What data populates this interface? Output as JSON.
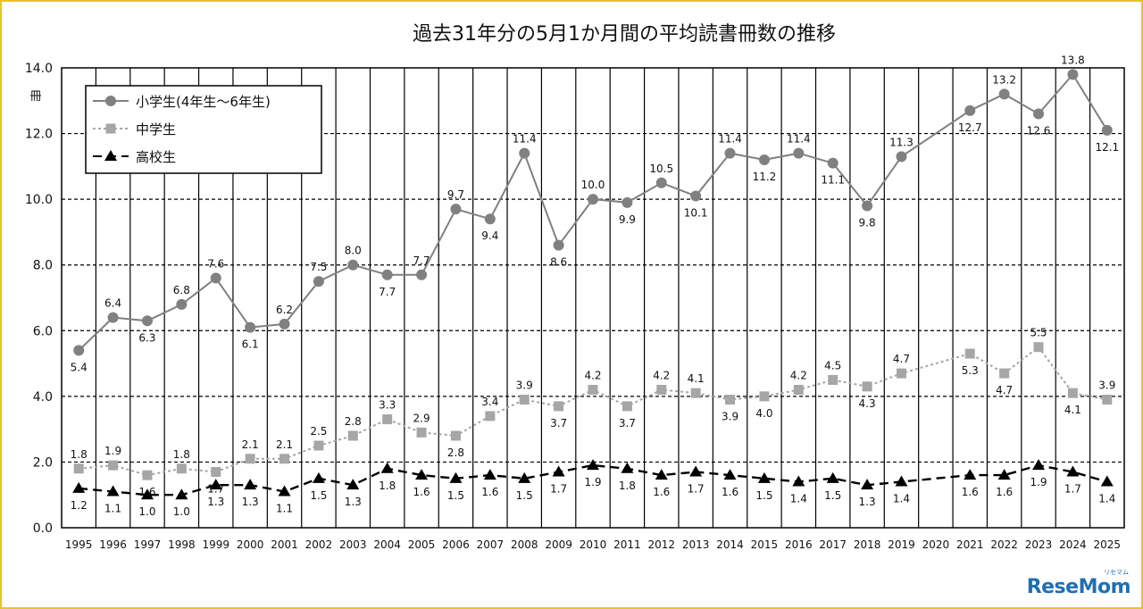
{
  "chart_data": {
    "type": "line",
    "title": "過去31年分の5月1か月間の平均読書冊数の推移",
    "ylabel": "冊",
    "ylim": [
      0,
      14
    ],
    "yticks": [
      "0.0",
      "2.0",
      "4.0",
      "6.0",
      "8.0",
      "10.0",
      "12.0",
      "14.0"
    ],
    "categories": [
      "1995",
      "1996",
      "1997",
      "1998",
      "1999",
      "2000",
      "2001",
      "2002",
      "2003",
      "2004",
      "2005",
      "2006",
      "2007",
      "2008",
      "2009",
      "2010",
      "2011",
      "2012",
      "2013",
      "2014",
      "2015",
      "2016",
      "2017",
      "2018",
      "2019",
      "2020",
      "2021",
      "2022",
      "2023",
      "2024",
      "2025"
    ],
    "grid": true,
    "legend": "top-left",
    "series": [
      {
        "name": "小学生(4年生～6年生)",
        "color": "#808080",
        "marker": "circle",
        "dash": "solid",
        "values": [
          5.4,
          6.4,
          6.3,
          6.8,
          7.6,
          6.1,
          6.2,
          7.5,
          8.0,
          7.7,
          7.7,
          9.7,
          9.4,
          11.4,
          8.6,
          10.0,
          9.9,
          10.5,
          10.1,
          11.4,
          11.2,
          11.4,
          11.1,
          9.8,
          11.3,
          null,
          12.7,
          13.2,
          12.6,
          13.8,
          12.1
        ],
        "labels": [
          "5.4",
          "6.4",
          "6.3",
          "6.8",
          "7.6",
          "6.1",
          "6.2",
          "7.5",
          "8.0",
          "7.7",
          "7.7",
          "9.7",
          "9.4",
          "11.4",
          "8.6",
          "10.0",
          "9.9",
          "10.5",
          "10.1",
          "11.4",
          "11.2",
          "11.4",
          "11.1",
          "9.8",
          "11.3",
          null,
          "12.7",
          "13.2",
          "12.6",
          "13.8",
          "12.1"
        ]
      },
      {
        "name": "中学生",
        "color": "#a6a6a6",
        "marker": "square",
        "dash": "dotted",
        "values": [
          1.8,
          1.9,
          1.6,
          1.8,
          1.7,
          2.1,
          2.1,
          2.5,
          2.8,
          3.3,
          2.9,
          2.8,
          3.4,
          3.9,
          3.7,
          4.2,
          3.7,
          4.2,
          4.1,
          3.9,
          4.0,
          4.2,
          4.5,
          4.3,
          4.7,
          null,
          5.3,
          4.7,
          5.5,
          4.1,
          3.9
        ],
        "labels": [
          "1.8",
          "1.9",
          "1.6",
          "1.8",
          "1.7",
          "2.1",
          "2.1",
          "2.5",
          "2.8",
          "3.3",
          "2.9",
          "2.8",
          "3.4",
          "3.9",
          "3.7",
          "4.2",
          "3.7",
          "4.2",
          "4.1",
          "3.9",
          "4.0",
          "4.2",
          "4.5",
          "4.3",
          "4.7",
          null,
          "5.3",
          "4.7",
          "5.5",
          "4.1",
          "3.9"
        ]
      },
      {
        "name": "高校生",
        "color": "#000000",
        "marker": "triangle",
        "dash": "dashed",
        "values": [
          1.2,
          1.1,
          1.0,
          1.0,
          1.3,
          1.3,
          1.1,
          1.5,
          1.3,
          1.8,
          1.6,
          1.5,
          1.6,
          1.5,
          1.7,
          1.9,
          1.8,
          1.6,
          1.7,
          1.6,
          1.5,
          1.4,
          1.5,
          1.3,
          1.4,
          null,
          1.6,
          1.6,
          1.9,
          1.7,
          1.4
        ],
        "labels": [
          "1.2",
          "1.1",
          "1.0",
          "1.0",
          "1.3",
          "1.3",
          "1.1",
          "1.5",
          "1.3",
          "1.8",
          "1.6",
          "1.5",
          "1.6",
          "1.5",
          "1.7",
          "1.9",
          "1.8",
          "1.6",
          "1.7",
          "1.6",
          "1.5",
          "1.4",
          "1.5",
          "1.3",
          "1.4",
          null,
          "1.6",
          "1.6",
          "1.9",
          "1.7",
          "1.4"
        ]
      }
    ]
  },
  "watermark": {
    "brand": "ReseMom",
    "kana": "リセマム"
  }
}
